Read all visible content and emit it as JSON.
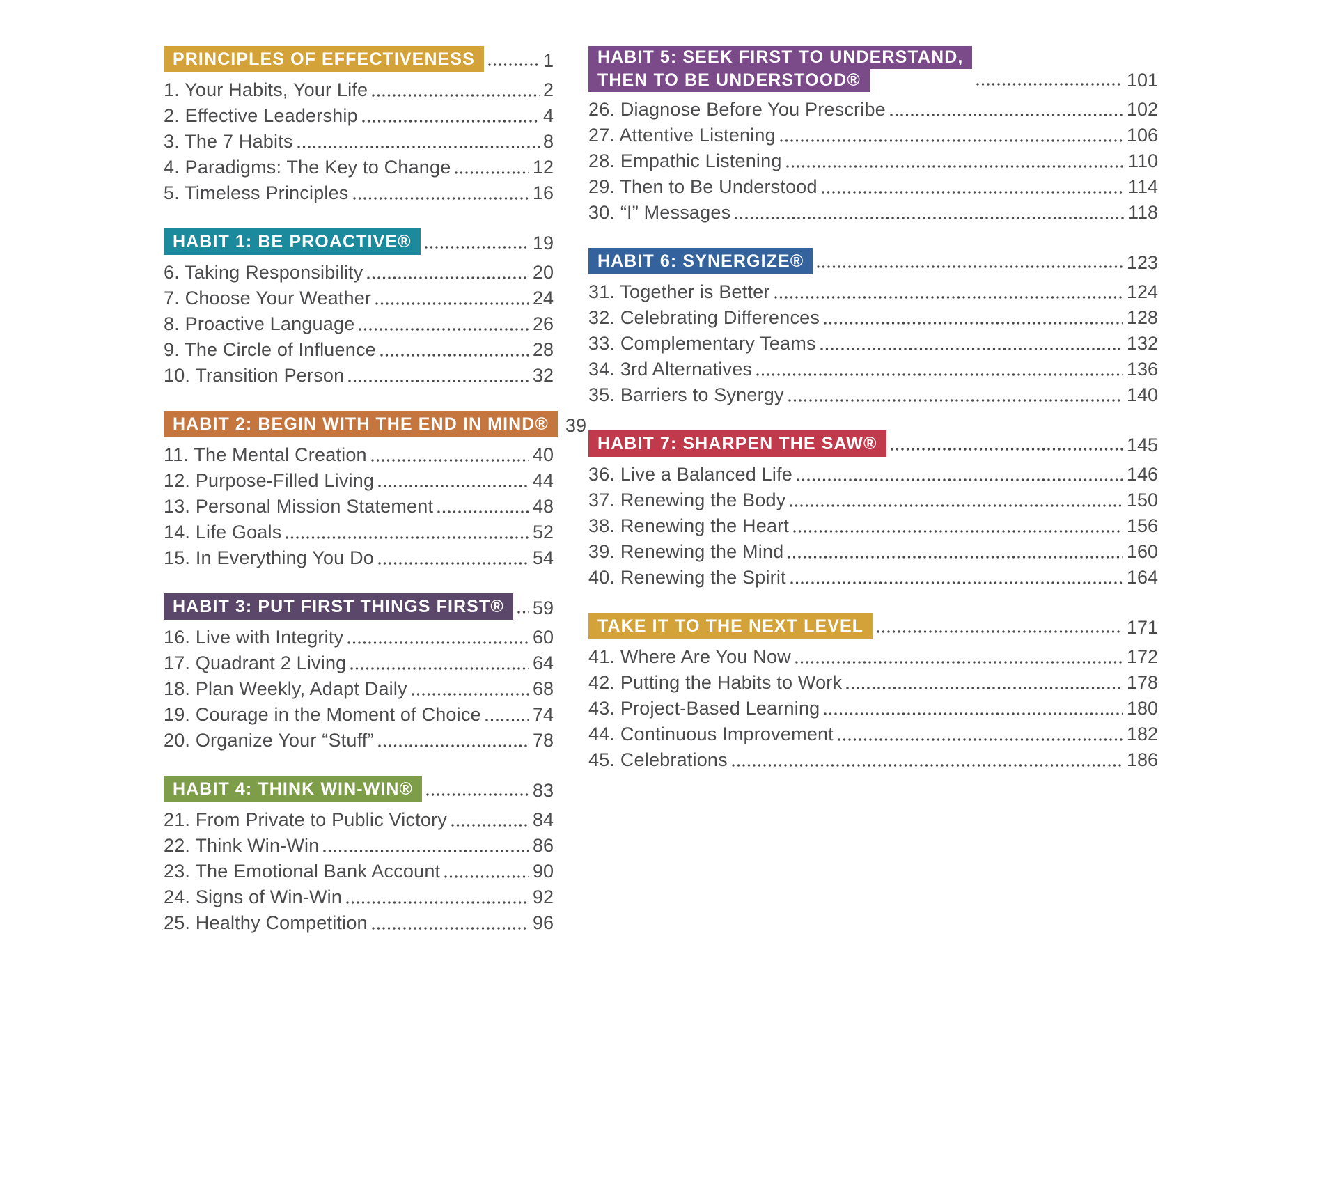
{
  "page": {
    "background": "#ffffff",
    "text_color": "#4b4b4d",
    "dot_color": "#4b4b4d"
  },
  "columns": [
    {
      "name": "left",
      "sections": [
        {
          "header": {
            "lines": [
              "PRINCIPLES OF EFFECTIVENESS"
            ],
            "page": "1",
            "color": "#d3a339"
          },
          "items": [
            {
              "label": "1. Your Habits, Your Life",
              "page": "2"
            },
            {
              "label": "2. Effective Leadership",
              "page": "4"
            },
            {
              "label": "3. The 7 Habits",
              "page": "8"
            },
            {
              "label": "4. Paradigms: The Key to Change",
              "page": "12"
            },
            {
              "label": "5. Timeless Principles",
              "page": "16"
            }
          ]
        },
        {
          "header": {
            "lines": [
              "HABIT 1: BE PROACTIVE®"
            ],
            "page": "19",
            "color": "#1b8a9d"
          },
          "items": [
            {
              "label": "6. Taking Responsibility",
              "page": "20"
            },
            {
              "label": "7. Choose Your Weather",
              "page": "24"
            },
            {
              "label": "8. Proactive Language",
              "page": "26"
            },
            {
              "label": "9. The Circle of Influence",
              "page": "28"
            },
            {
              "label": "10. Transition Person",
              "page": "32"
            }
          ]
        },
        {
          "header": {
            "lines": [
              "HABIT 2: BEGIN WITH THE END IN MIND®"
            ],
            "page": "39",
            "color": "#c5763e"
          },
          "items": [
            {
              "label": "11. The Mental Creation",
              "page": "40"
            },
            {
              "label": "12. Purpose-Filled Living",
              "page": "44"
            },
            {
              "label": "13. Personal Mission Statement",
              "page": "48"
            },
            {
              "label": "14. Life Goals",
              "page": "52"
            },
            {
              "label": "15. In Everything You Do",
              "page": "54"
            }
          ]
        },
        {
          "header": {
            "lines": [
              "HABIT 3: PUT FIRST THINGS FIRST®"
            ],
            "page": "59",
            "color": "#5b4769"
          },
          "items": [
            {
              "label": "16. Live with Integrity",
              "page": "60"
            },
            {
              "label": "17. Quadrant 2 Living",
              "page": "64"
            },
            {
              "label": "18. Plan Weekly, Adapt Daily",
              "page": "68"
            },
            {
              "label": "19. Courage in the Moment of Choice",
              "page": "74"
            },
            {
              "label": "20. Organize Your “Stuff”",
              "page": "78"
            }
          ]
        },
        {
          "header": {
            "lines": [
              "HABIT 4: THINK WIN-WIN®"
            ],
            "page": "83",
            "color": "#7e9d48"
          },
          "items": [
            {
              "label": "21. From Private to Public Victory",
              "page": "84"
            },
            {
              "label": "22. Think Win-Win",
              "page": "86"
            },
            {
              "label": "23. The Emotional Bank Account",
              "page": "90"
            },
            {
              "label": "24. Signs of Win-Win",
              "page": "92"
            },
            {
              "label": "25. Healthy Competition",
              "page": "96"
            }
          ]
        }
      ]
    },
    {
      "name": "right",
      "sections": [
        {
          "header": {
            "lines": [
              "HABIT 5: SEEK FIRST TO UNDERSTAND,",
              "THEN TO BE UNDERSTOOD®"
            ],
            "page": "101",
            "color": "#7b4a89"
          },
          "items": [
            {
              "label": "26. Diagnose Before You Prescribe",
              "page": "102"
            },
            {
              "label": "27. Attentive Listening",
              "page": "106"
            },
            {
              "label": "28. Empathic Listening",
              "page": "110"
            },
            {
              "label": "29. Then to Be Understood",
              "page": "114"
            },
            {
              "label": "30. “I” Messages",
              "page": "118"
            }
          ]
        },
        {
          "header": {
            "lines": [
              "HABIT 6: SYNERGIZE®"
            ],
            "page": "123",
            "color": "#33629d"
          },
          "items": [
            {
              "label": "31. Together is Better",
              "page": "124"
            },
            {
              "label": "32. Celebrating Differences",
              "page": "128"
            },
            {
              "label": "33. Complementary Teams",
              "page": "132"
            },
            {
              "label": "34. 3rd Alternatives",
              "page": "136"
            },
            {
              "label": "35. Barriers to Synergy",
              "page": "140"
            }
          ]
        },
        {
          "header": {
            "lines": [
              "HABIT 7: SHARPEN THE SAW®"
            ],
            "page": "145",
            "color": "#c13a4b"
          },
          "items": [
            {
              "label": "36. Live a Balanced Life",
              "page": "146"
            },
            {
              "label": "37. Renewing the Body",
              "page": "150"
            },
            {
              "label": "38. Renewing the Heart",
              "page": "156"
            },
            {
              "label": "39. Renewing the Mind",
              "page": "160"
            },
            {
              "label": "40. Renewing the Spirit",
              "page": "164"
            }
          ]
        },
        {
          "header": {
            "lines": [
              "TAKE IT TO THE NEXT LEVEL"
            ],
            "page": "171",
            "color": "#d3a339"
          },
          "items": [
            {
              "label": "41. Where Are You Now",
              "page": "172"
            },
            {
              "label": "42. Putting the Habits to Work",
              "page": "178"
            },
            {
              "label": "43. Project-Based Learning",
              "page": "180"
            },
            {
              "label": "44. Continuous Improvement",
              "page": "182"
            },
            {
              "label": "45. Celebrations",
              "page": "186"
            }
          ]
        }
      ]
    }
  ]
}
